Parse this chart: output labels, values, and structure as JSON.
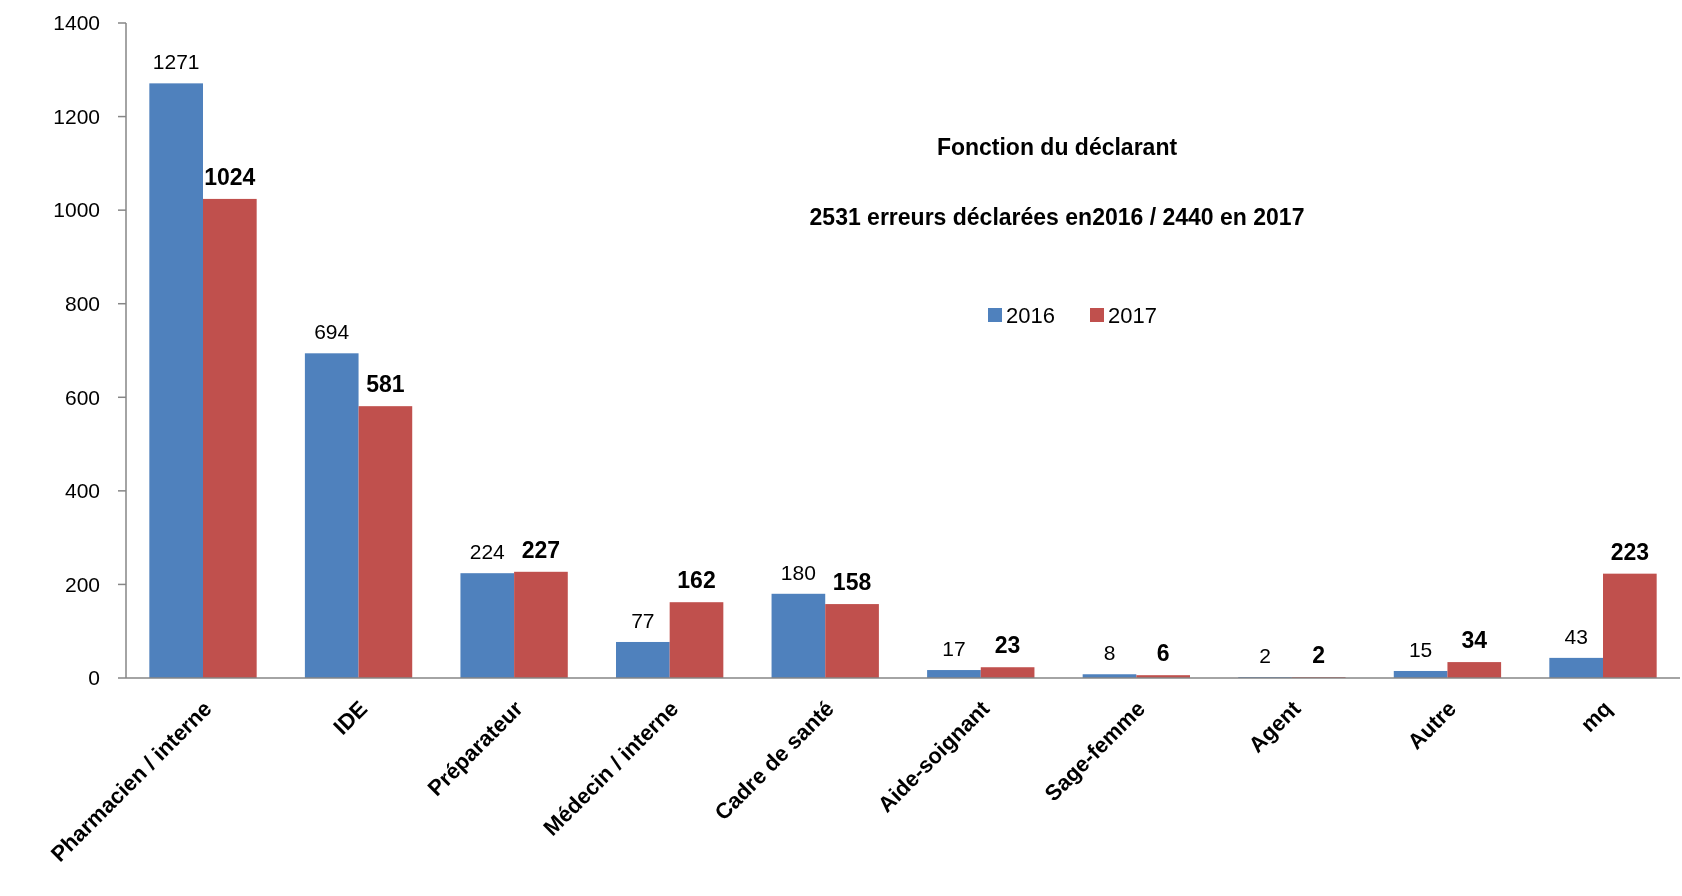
{
  "chart_data": {
    "type": "bar",
    "title": "Fonction du déclarant",
    "subtitle": "2531 erreurs déclarées en2016 / 2440 en 2017",
    "categories": [
      "Pharmacien / interne",
      "IDE",
      "Préparateur",
      "Médecin / interne",
      "Cadre de santé",
      "Aide-soignant",
      "Sage-femme",
      "Agent",
      "Autre",
      "mq"
    ],
    "series": [
      {
        "name": "2016",
        "color": "#4f81bd",
        "values": [
          1271,
          694,
          224,
          77,
          180,
          17,
          8,
          2,
          15,
          43
        ]
      },
      {
        "name": "2017",
        "color": "#c0504d",
        "values": [
          1024,
          581,
          227,
          162,
          158,
          23,
          6,
          2,
          34,
          223
        ]
      }
    ],
    "ylim": [
      0,
      1400
    ],
    "yticks": [
      0,
      200,
      400,
      600,
      800,
      1000,
      1200,
      1400
    ],
    "grid": false,
    "legend": "top right",
    "data_labels": true
  }
}
